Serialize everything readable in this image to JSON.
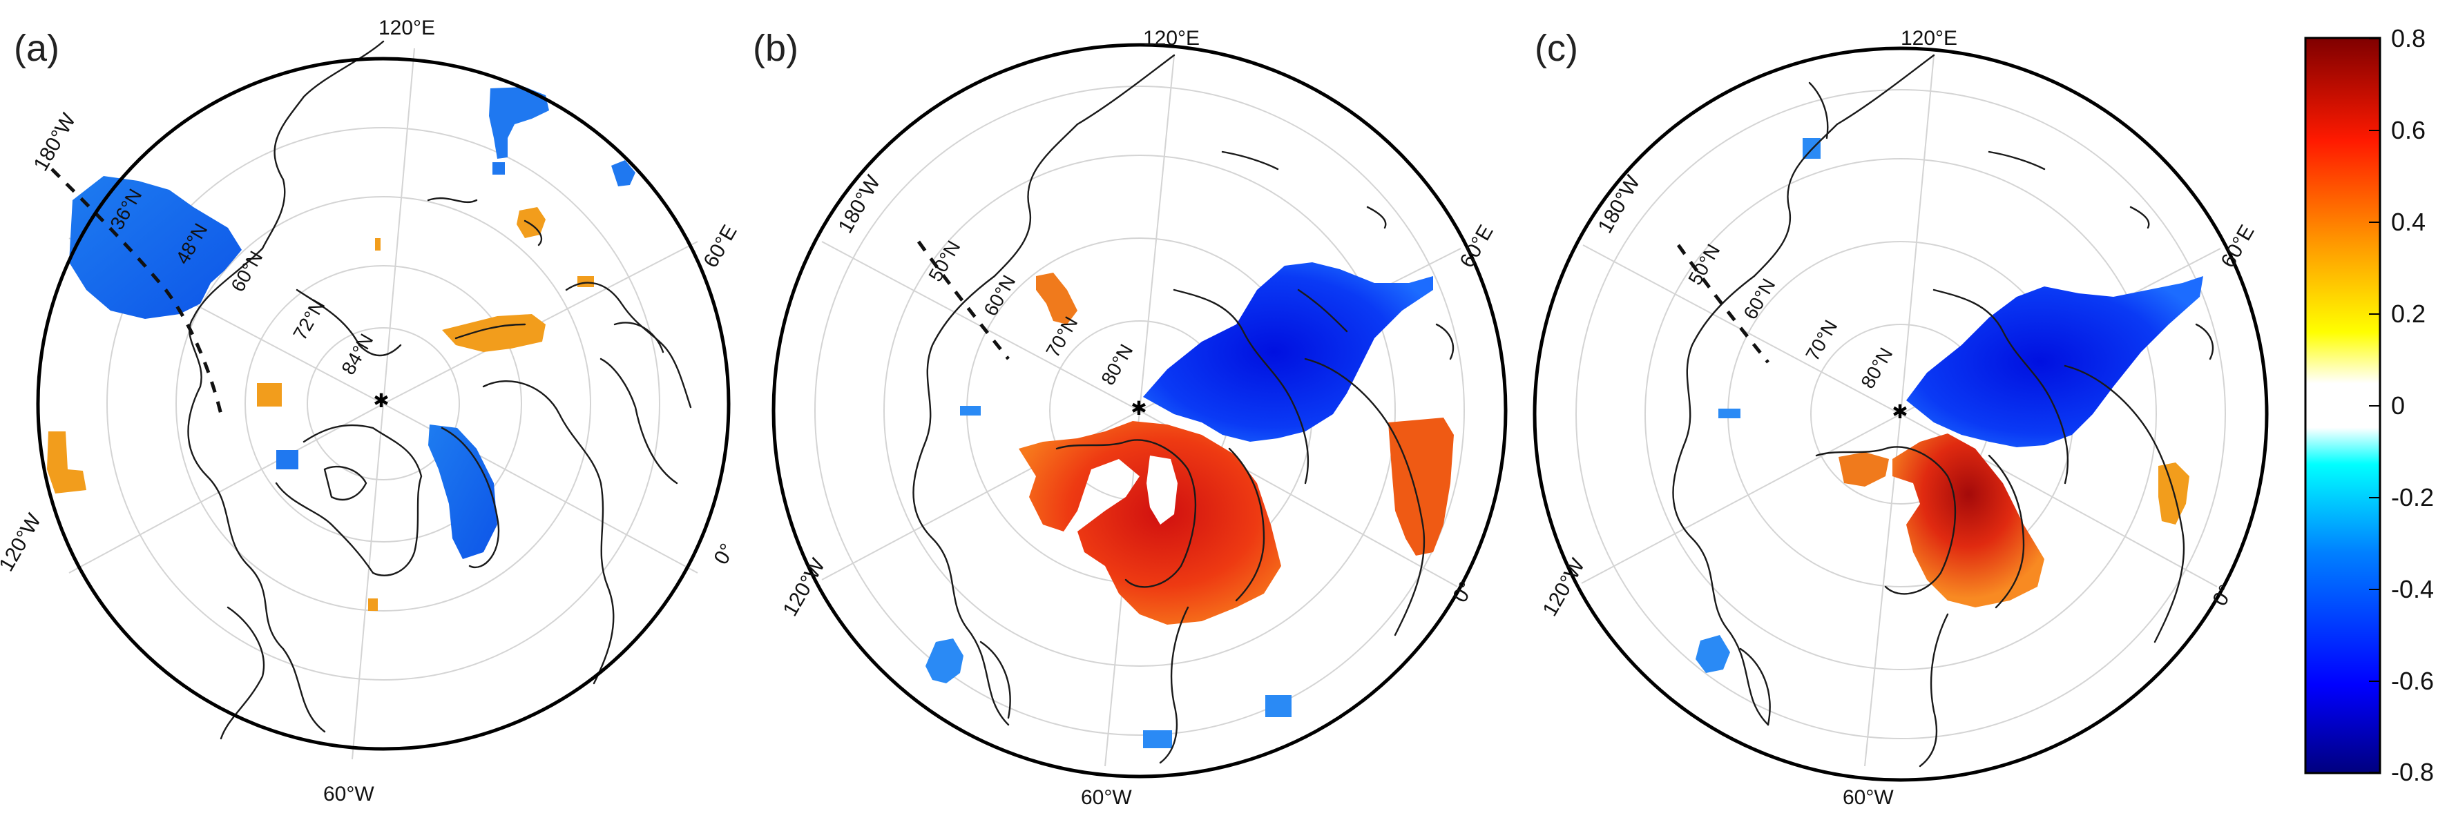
{
  "colorbar": {
    "ticks": [
      "0.8",
      "0.6",
      "0.4",
      "0.2",
      "0",
      "-0.2",
      "-0.4",
      "-0.6",
      "-0.8"
    ],
    "range": [
      -0.8,
      0.8
    ],
    "colors": [
      "#00007f",
      "#0000ff",
      "#0080ff",
      "#00ffff",
      "#ffffff",
      "#ffff00",
      "#ff8000",
      "#ff0000",
      "#7f0000"
    ]
  },
  "panels": [
    {
      "letter": "(a)",
      "lon_labels": {
        "top": "120°E",
        "upper_left": "180°W",
        "left": "120°W",
        "bottom": "60°W",
        "right_lower": "0°",
        "right_upper": "60°E"
      },
      "lat_labels": [
        "36°N",
        "48°N",
        "60°N",
        "72°N",
        "84°N"
      ]
    },
    {
      "letter": "(b)",
      "lon_labels": {
        "top": "120°E",
        "upper_left": "180°W",
        "left": "120°W",
        "bottom": "60°W",
        "right_lower": "0°",
        "right_upper": "60°E"
      },
      "lat_labels": [
        "50°N",
        "60°N",
        "70°N",
        "80°N"
      ]
    },
    {
      "letter": "(c)",
      "lon_labels": {
        "top": "120°E",
        "upper_left": "180°W",
        "left": "120°W",
        "bottom": "60°W",
        "right_lower": "0°",
        "right_upper": "60°E"
      },
      "lat_labels": [
        "50°N",
        "60°N",
        "70°N",
        "80°N"
      ]
    }
  ]
}
